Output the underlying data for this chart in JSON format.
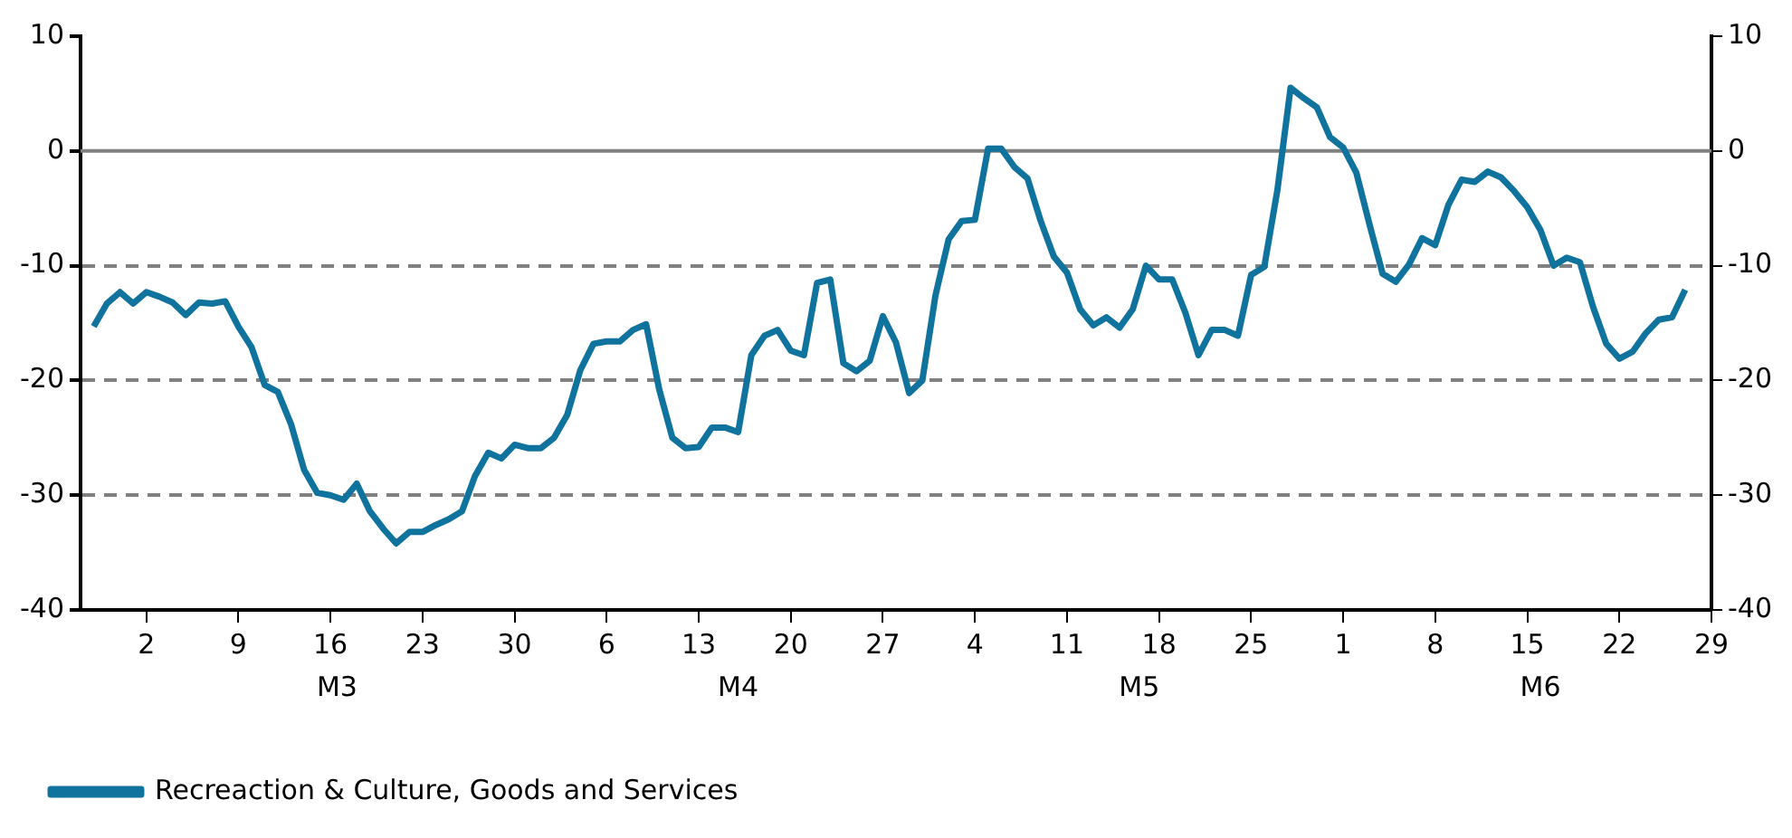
{
  "chart_data": {
    "type": "line",
    "x": [
      "--02-27",
      "--02-28",
      "--02-29",
      "--03-01",
      "--03-02",
      "--03-03",
      "--03-04",
      "--03-05",
      "--03-06",
      "--03-07",
      "--03-08",
      "--03-09",
      "--03-10",
      "--03-11",
      "--03-12",
      "--03-13",
      "--03-14",
      "--03-15",
      "--03-16",
      "--03-17",
      "--03-18",
      "--03-19",
      "--03-20",
      "--03-21",
      "--03-22",
      "--03-23",
      "--03-24",
      "--03-25",
      "--03-26",
      "--03-27",
      "--03-28",
      "--03-29",
      "--03-30",
      "--03-31",
      "--04-01",
      "--04-02",
      "--04-03",
      "--04-04",
      "--04-05",
      "--04-06",
      "--04-07",
      "--04-08",
      "--04-09",
      "--04-10",
      "--04-11",
      "--04-12",
      "--04-13",
      "--04-14",
      "--04-15",
      "--04-16",
      "--04-17",
      "--04-18",
      "--04-19",
      "--04-20",
      "--04-21",
      "--04-22",
      "--04-23",
      "--04-24",
      "--04-25",
      "--04-26",
      "--04-27",
      "--04-28",
      "--04-29",
      "--04-30",
      "--05-01",
      "--05-02",
      "--05-03",
      "--05-04",
      "--05-05",
      "--05-06",
      "--05-07",
      "--05-08",
      "--05-09",
      "--05-10",
      "--05-11",
      "--05-12",
      "--05-13",
      "--05-14",
      "--05-15",
      "--05-16",
      "--05-17",
      "--05-18",
      "--05-19",
      "--05-20",
      "--05-21",
      "--05-22",
      "--05-23",
      "--05-24",
      "--05-25",
      "--05-26",
      "--05-27",
      "--05-28",
      "--05-29",
      "--05-30",
      "--05-31",
      "--06-01",
      "--06-02",
      "--06-03",
      "--06-04",
      "--06-05",
      "--06-06",
      "--06-07",
      "--06-08",
      "--06-09",
      "--06-10",
      "--06-11",
      "--06-12",
      "--06-13",
      "--06-14",
      "--06-15",
      "--06-16",
      "--06-17",
      "--06-18",
      "--06-19",
      "--06-20",
      "--06-21",
      "--06-22",
      "--06-23",
      "--06-24",
      "--06-25",
      "--06-26",
      "--06-27"
    ],
    "series": [
      {
        "name": "Recreaction & Culture, Goods and Services",
        "color": "#10739e",
        "values": [
          -15.3,
          -13.3,
          -12.3,
          -13.3,
          -12.3,
          -12.7,
          -13.2,
          -14.3,
          -13.2,
          -13.3,
          -13.1,
          -15.3,
          -17.1,
          -20.4,
          -21.0,
          -23.8,
          -27.8,
          -29.8,
          -30.0,
          -30.4,
          -29.0,
          -31.4,
          -32.9,
          -34.2,
          -33.2,
          -33.2,
          -32.6,
          -32.1,
          -31.4,
          -28.3,
          -26.3,
          -26.8,
          -25.6,
          -25.9,
          -25.9,
          -25.0,
          -23.0,
          -19.1,
          -16.8,
          -16.6,
          -16.6,
          -15.6,
          -15.1,
          -20.8,
          -25.0,
          -25.9,
          -25.8,
          -24.1,
          -24.1,
          -24.5,
          -17.8,
          -16.1,
          -15.6,
          -17.4,
          -17.8,
          -11.5,
          -11.2,
          -18.5,
          -19.2,
          -18.3,
          -14.4,
          -16.7,
          -21.1,
          -20.0,
          -12.6,
          -7.7,
          -6.1,
          -6.0,
          0.2,
          0.2,
          -1.4,
          -2.4,
          -6.1,
          -9.2,
          -10.6,
          -13.8,
          -15.2,
          -14.5,
          -15.4,
          -13.8,
          -10.0,
          -11.2,
          -11.2,
          -14.1,
          -17.8,
          -15.6,
          -15.6,
          -16.1,
          -10.8,
          -10.1,
          -3.4,
          5.5,
          4.6,
          3.8,
          1.2,
          0.3,
          -1.9,
          -6.4,
          -10.7,
          -11.4,
          -9.9,
          -7.6,
          -8.2,
          -4.7,
          -2.5,
          -2.7,
          -1.8,
          -2.3,
          -3.5,
          -4.9,
          -6.9,
          -10.0,
          -9.3,
          -9.7,
          -13.6,
          -16.8,
          -18.1,
          -17.5,
          -15.9,
          -14.7,
          -14.5,
          -12.1
        ]
      }
    ],
    "xlim": [
      "--02-26",
      "--06-29"
    ],
    "xticks": [
      {
        "value": "--03-02",
        "label": "2"
      },
      {
        "value": "--03-09",
        "label": "9"
      },
      {
        "value": "--03-16",
        "label": "16"
      },
      {
        "value": "--03-23",
        "label": "23"
      },
      {
        "value": "--03-30",
        "label": "30"
      },
      {
        "value": "--04-06",
        "label": "6"
      },
      {
        "value": "--04-13",
        "label": "13"
      },
      {
        "value": "--04-20",
        "label": "20"
      },
      {
        "value": "--04-27",
        "label": "27"
      },
      {
        "value": "--05-04",
        "label": "4"
      },
      {
        "value": "--05-11",
        "label": "11"
      },
      {
        "value": "--05-18",
        "label": "18"
      },
      {
        "value": "--05-25",
        "label": "25"
      },
      {
        "value": "--06-01",
        "label": "1"
      },
      {
        "value": "--06-08",
        "label": "8"
      },
      {
        "value": "--06-15",
        "label": "15"
      },
      {
        "value": "--06-22",
        "label": "22"
      },
      {
        "value": "--06-29",
        "label": "29"
      }
    ],
    "ylim": [
      -40,
      10
    ],
    "yticks": [
      -40,
      -30,
      -20,
      -10,
      0,
      10
    ],
    "y2lim": [
      -40,
      10
    ],
    "y2ticks": [
      -40,
      -30,
      -20,
      -10,
      0,
      10
    ],
    "grid": "y",
    "ref_lines": [
      {
        "axis": "y",
        "value": 0,
        "color": "#808080",
        "line_style": "solid"
      }
    ],
    "annotations": [
      "M3",
      "M4",
      "M5",
      "M6"
    ],
    "legend": "bottom left",
    "marker": "none",
    "line_style": "solid"
  }
}
